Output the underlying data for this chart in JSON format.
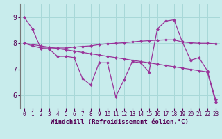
{
  "x": [
    0,
    1,
    2,
    3,
    4,
    5,
    6,
    7,
    8,
    9,
    10,
    11,
    12,
    13,
    14,
    15,
    16,
    17,
    18,
    19,
    20,
    21,
    22,
    23
  ],
  "line1": [
    9.0,
    8.55,
    7.8,
    7.78,
    7.5,
    7.5,
    7.45,
    6.65,
    6.4,
    7.25,
    7.25,
    5.95,
    6.6,
    7.3,
    7.25,
    6.9,
    8.55,
    8.85,
    8.9,
    8.05,
    7.35,
    7.45,
    6.95,
    5.85
  ],
  "line2": [
    8.0,
    7.9,
    7.82,
    7.82,
    7.82,
    7.82,
    7.85,
    7.88,
    7.9,
    7.95,
    7.98,
    8.0,
    8.02,
    8.05,
    8.08,
    8.1,
    8.12,
    8.13,
    8.13,
    8.05,
    8.02,
    8.0,
    8.0,
    7.98
  ],
  "line3": [
    8.0,
    7.95,
    7.9,
    7.85,
    7.8,
    7.75,
    7.7,
    7.65,
    7.6,
    7.55,
    7.5,
    7.45,
    7.4,
    7.35,
    7.3,
    7.25,
    7.2,
    7.15,
    7.1,
    7.05,
    7.0,
    6.95,
    6.9,
    5.75
  ],
  "bg_color": "#c8ecec",
  "grid_color": "#a8d8d8",
  "line_color": "#993399",
  "xlabel": "Windchill (Refroidissement éolien,°C)",
  "ylim": [
    5.5,
    9.5
  ],
  "xlim": [
    -0.5,
    23.5
  ],
  "yticks": [
    6,
    7,
    8,
    9
  ],
  "xticks": [
    0,
    1,
    2,
    3,
    4,
    5,
    6,
    7,
    8,
    9,
    10,
    11,
    12,
    13,
    14,
    15,
    16,
    17,
    18,
    19,
    20,
    21,
    22,
    23
  ],
  "markersize": 2.5,
  "linewidth": 0.9
}
